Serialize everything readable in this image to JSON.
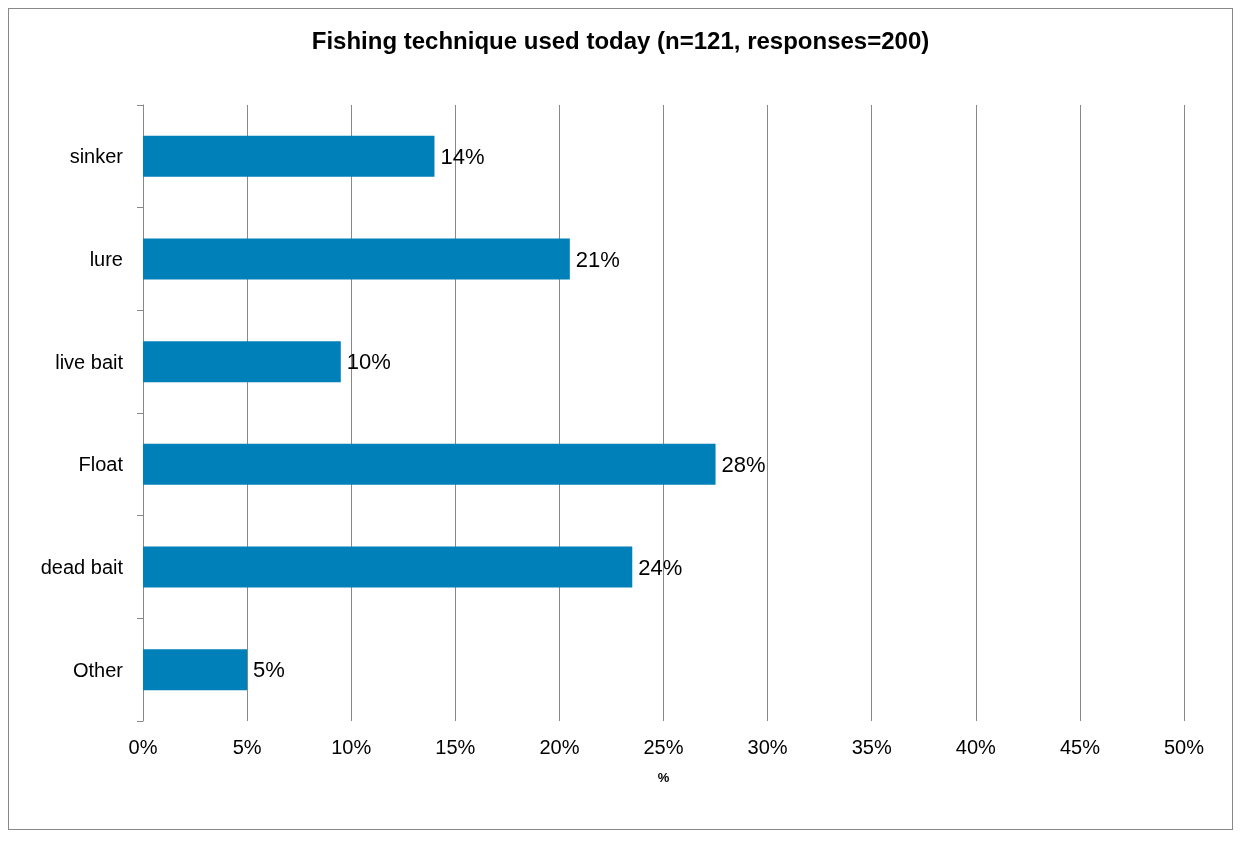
{
  "chart_data": {
    "type": "bar",
    "orientation": "horizontal",
    "title": "Fishing technique used today (n=121, responses=200)",
    "xlabel": "%",
    "categories": [
      "sinker",
      "lure",
      "live bait",
      "Float",
      "dead bait",
      "Other"
    ],
    "values": [
      14,
      20.5,
      9.5,
      27.5,
      23.5,
      5
    ],
    "value_labels": [
      "14%",
      "21%",
      "10%",
      "28%",
      "24%",
      "5%"
    ],
    "color": "#0080b8",
    "xlim": [
      0,
      50
    ],
    "xticks": [
      {
        "value": 0,
        "label": "0%"
      },
      {
        "value": 5,
        "label": "5%"
      },
      {
        "value": 10,
        "label": "10%"
      },
      {
        "value": 15,
        "label": "15%"
      },
      {
        "value": 20,
        "label": "20%"
      },
      {
        "value": 25,
        "label": "25%"
      },
      {
        "value": 30,
        "label": "30%"
      },
      {
        "value": 35,
        "label": "35%"
      },
      {
        "value": 40,
        "label": "40%"
      },
      {
        "value": 45,
        "label": "45%"
      },
      {
        "value": 50,
        "label": "50%"
      }
    ],
    "grid": "x"
  }
}
